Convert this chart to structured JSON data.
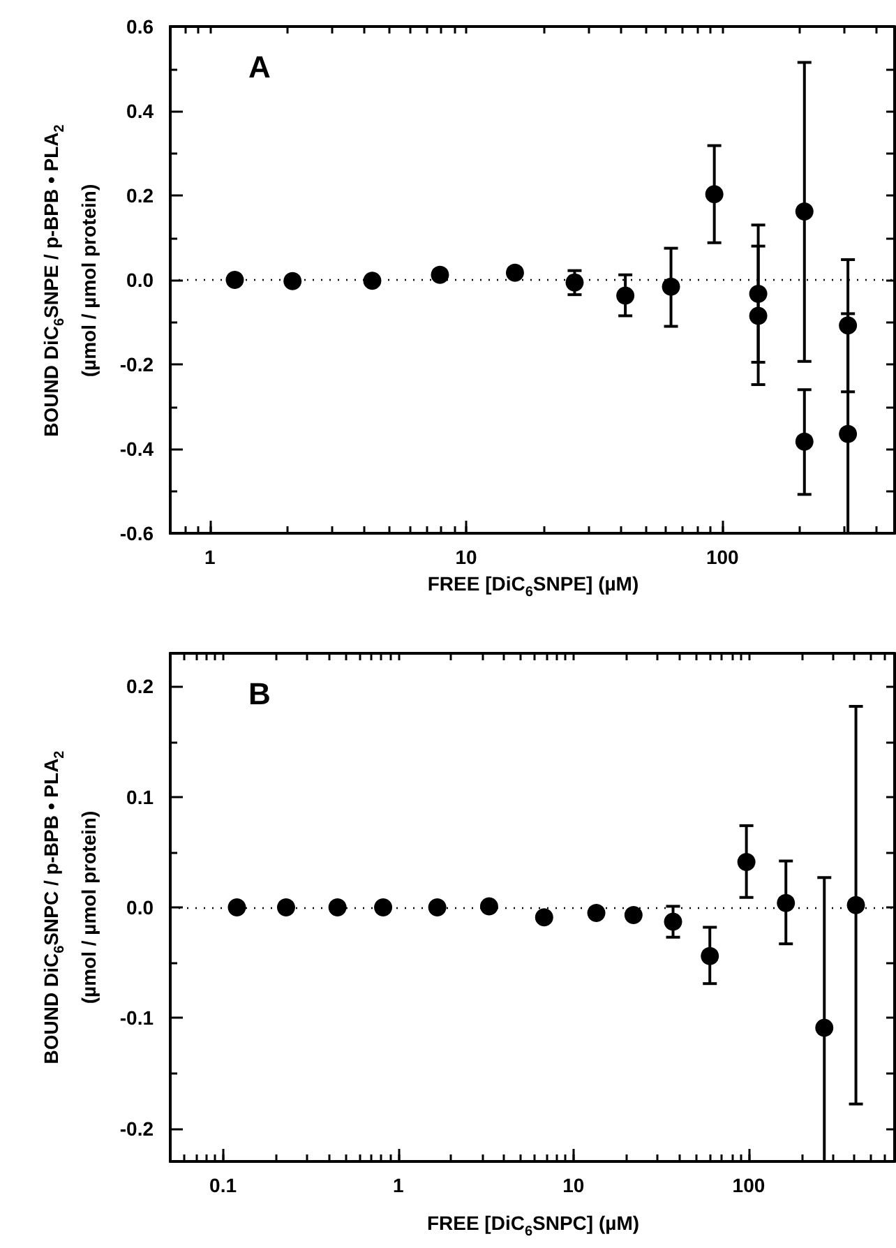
{
  "chart_data": [
    {
      "type": "scatter",
      "xlabel": "FREE  [DiC$_{6}$SNPE] (µM)",
      "ylabel": "BOUND DiC$_{6}$SNPE / p-BPB • PLA$_{2}$\n(µmol / µmol protein)",
      "annotations": [
        "A"
      ],
      "log": "x",
      "marker": "circle",
      "grid": false,
      "xlim": [
        0.7,
        470
      ],
      "xticks": [
        1,
        10,
        100
      ],
      "ylim": [
        -0.6,
        0.6
      ],
      "yticks": [
        {
          "value": -0.6,
          "label": "-0.6"
        },
        {
          "value": -0.4,
          "label": "-0.4"
        },
        {
          "value": -0.2,
          "label": "-0.2"
        },
        {
          "value": 0,
          "label": "0.0"
        },
        0.2,
        0.4,
        0.6
      ],
      "ref_lines": [
        {
          "axis": "y",
          "value": 0,
          "line_style": "dotted",
          "color": "#000000"
        }
      ],
      "series": [
        {
          "color": "#000000",
          "x": [
            1.25,
            2.1,
            4.3,
            7.9,
            15.5,
            26.5,
            41.8,
            63,
            93,
            138,
            138,
            209,
            209,
            309,
            309
          ],
          "values": [
            0,
            -0.003,
            -0.002,
            0.012,
            0.017,
            -0.006,
            -0.037,
            -0.016,
            0.203,
            -0.033,
            -0.085,
            0.162,
            -0.383,
            -0.108,
            -0.365
          ],
          "errors": [
            null,
            null,
            null,
            null,
            null,
            [
              -0.035,
              0.022
            ],
            [
              -0.085,
              0.012
            ],
            [
              -0.11,
              0.075
            ],
            [
              0.088,
              0.318
            ],
            [
              -0.195,
              0.13
            ],
            [
              -0.248,
              0.08
            ],
            [
              -0.193,
              0.515
            ],
            [
              -0.508,
              -0.26
            ],
            [
              -0.265,
              0.048
            ],
            [
              -0.6,
              -0.08
            ]
          ]
        }
      ]
    },
    {
      "type": "scatter",
      "xlabel": "FREE  [DiC$_{6}$SNPC] (µM)",
      "ylabel": "BOUND DiC$_{6}$SNPC / p-BPB • PLA$_{2}$\n(µmol / µmol protein)",
      "annotations": [
        "B"
      ],
      "log": "x",
      "marker": "circle",
      "grid": false,
      "xlim": [
        0.05,
        680
      ],
      "xticks": [
        0.1,
        1,
        10,
        100
      ],
      "ylim": [
        -0.23,
        0.23
      ],
      "yticks": [
        {
          "value": -0.2,
          "label": "-0.2"
        },
        {
          "value": -0.1,
          "label": "-0.1"
        },
        {
          "value": 0,
          "label": "0.0"
        },
        0.1,
        0.2
      ],
      "ref_lines": [
        {
          "axis": "y",
          "value": 0,
          "line_style": "dotted",
          "color": "#000000"
        }
      ],
      "series": [
        {
          "color": "#000000",
          "x": [
            0.12,
            0.229,
            0.45,
            0.82,
            1.67,
            3.3,
            6.8,
            13.5,
            22,
            37,
            60,
            97,
            163,
            270,
            409
          ],
          "values": [
            0,
            0,
            0,
            0,
            0,
            0.001,
            -0.009,
            -0.005,
            -0.007,
            -0.013,
            -0.044,
            0.041,
            0.004,
            -0.109,
            0.002
          ],
          "errors": [
            null,
            null,
            null,
            null,
            null,
            null,
            null,
            null,
            null,
            [
              -0.027,
              0.001
            ],
            [
              -0.069,
              -0.018
            ],
            [
              0.009,
              0.074
            ],
            [
              -0.033,
              0.042
            ],
            [
              -0.23,
              0.027
            ],
            [
              -0.178,
              0.182
            ]
          ]
        }
      ]
    }
  ]
}
